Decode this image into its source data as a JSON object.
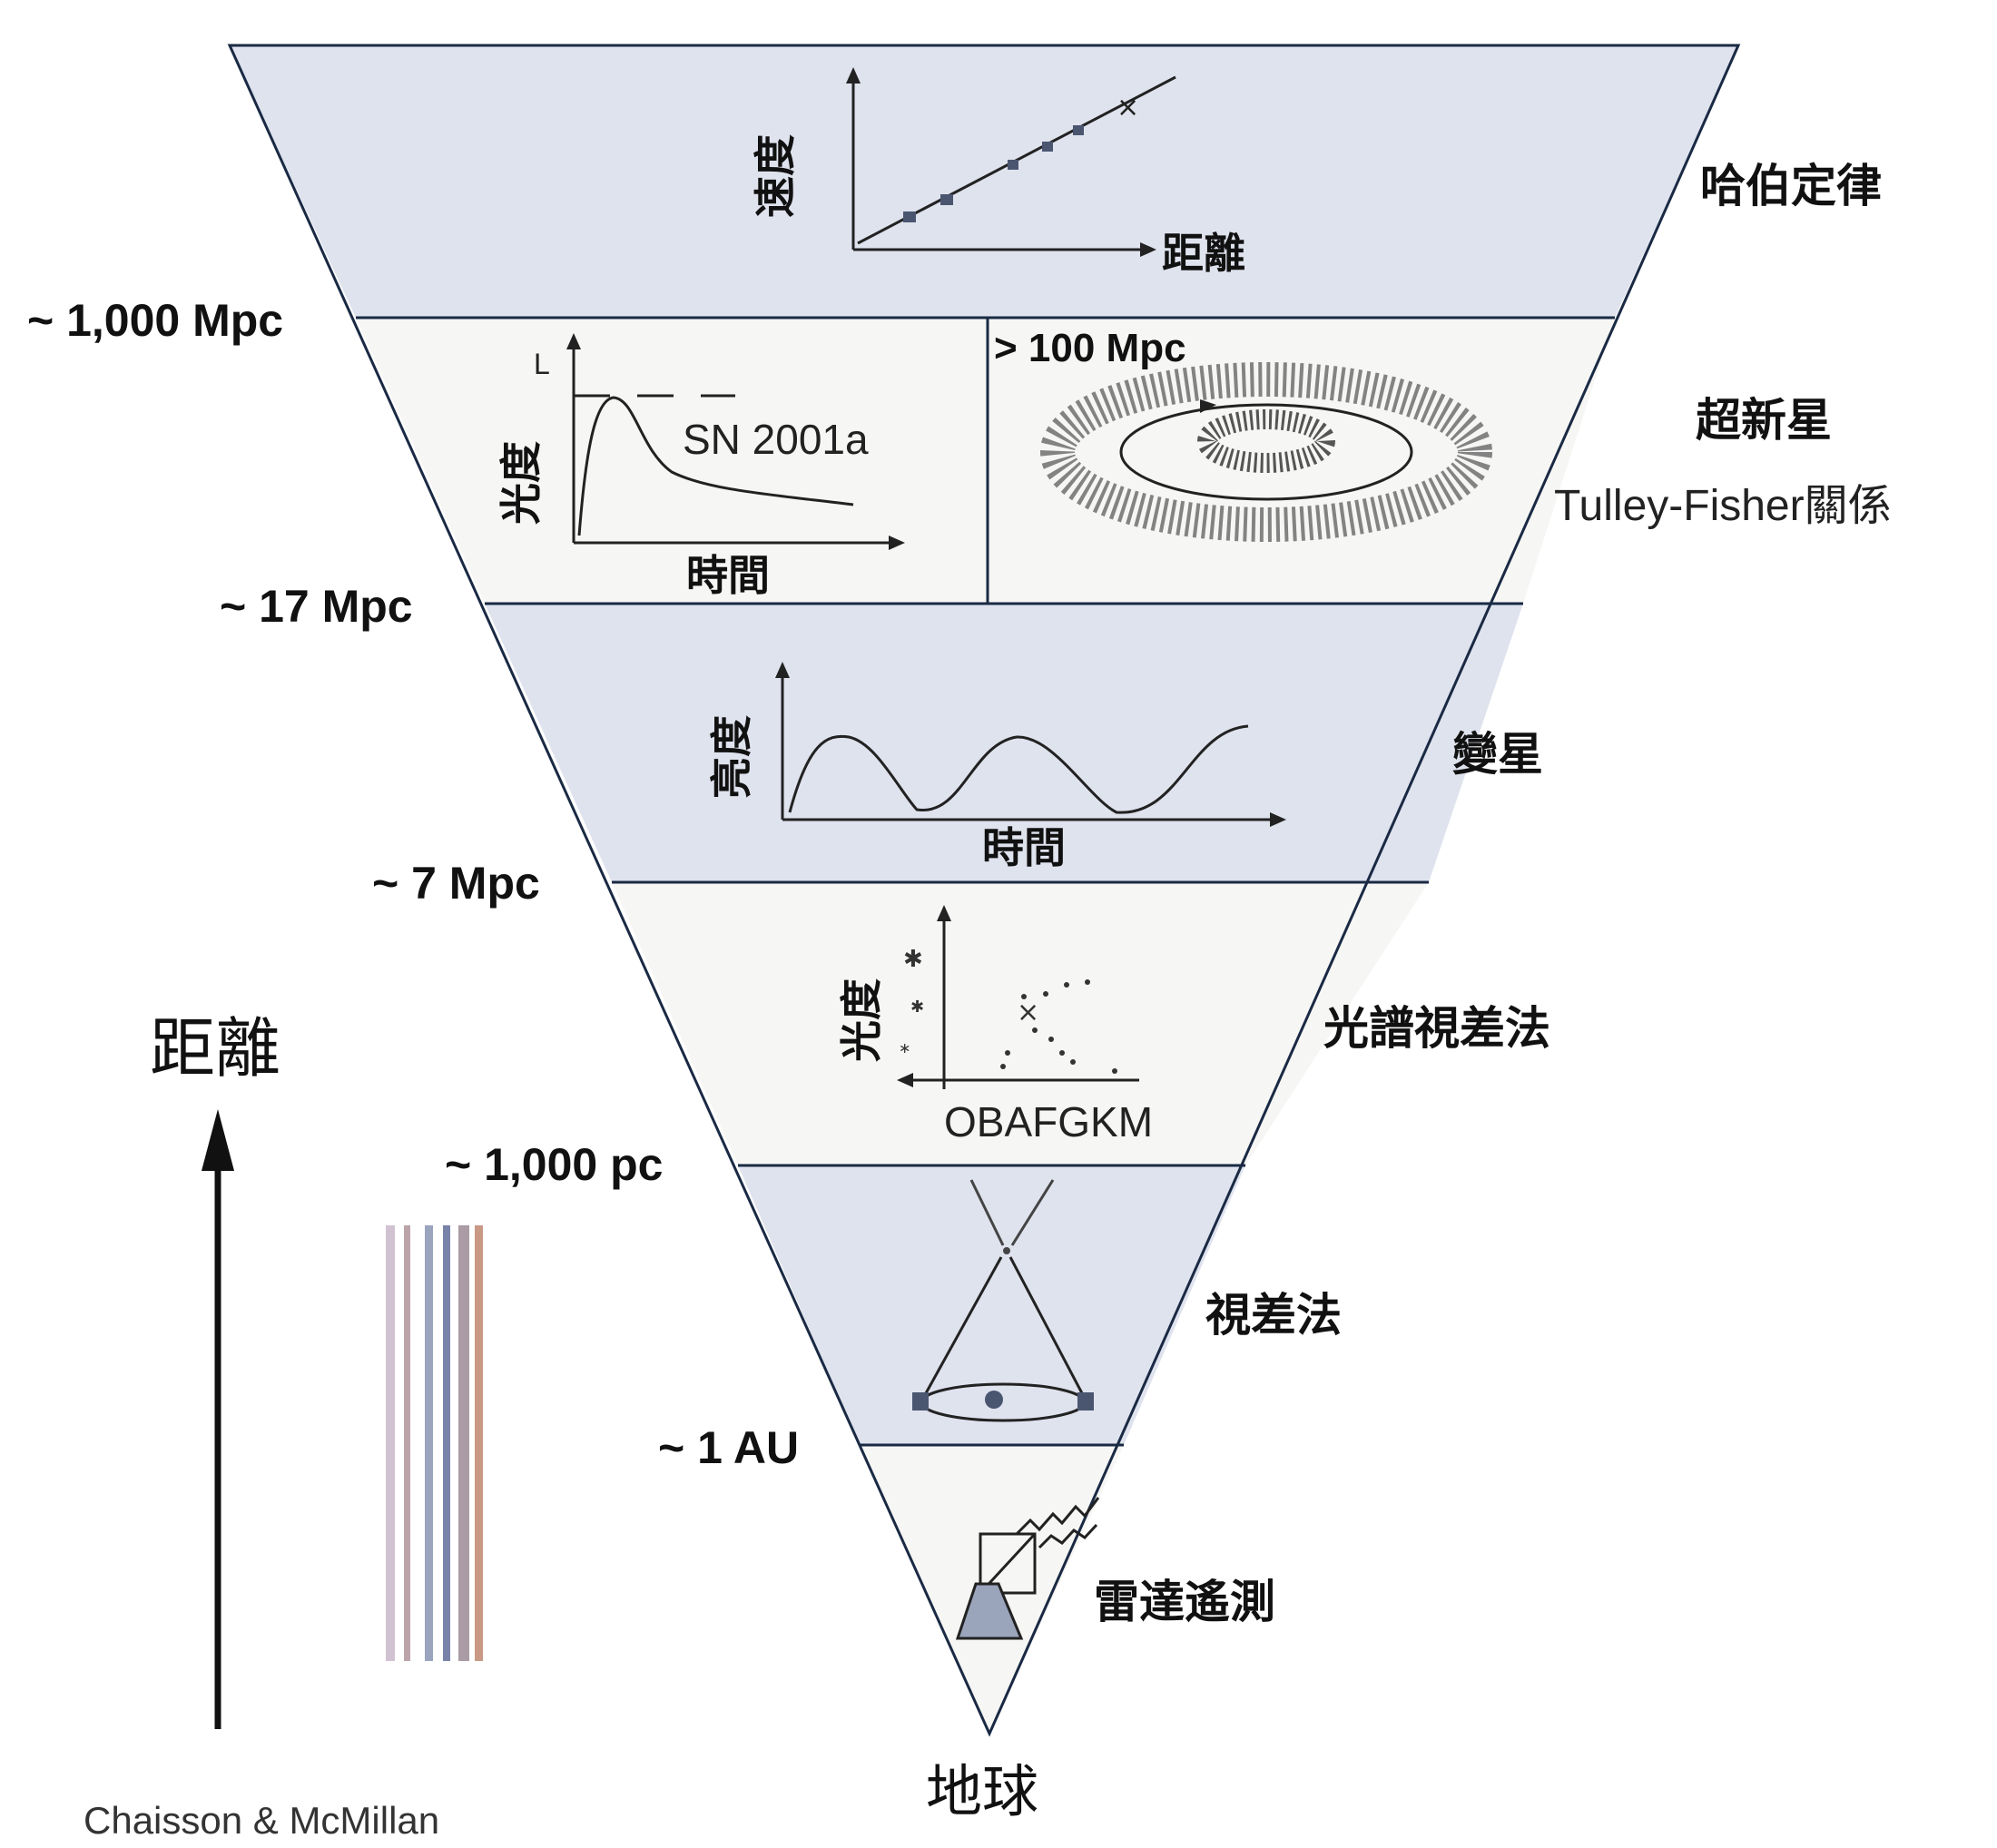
{
  "distances": {
    "d1000mpc": "~ 1,000 Mpc",
    "d17mpc": "~ 17 Mpc",
    "d7mpc": "~ 7 Mpc",
    "d1000pc": "~ 1,000 pc",
    "d1au": "~ 1 AU",
    "d100mpc": "> 100 Mpc"
  },
  "methods": {
    "hubble": "哈伯定律",
    "supernova": "超新星",
    "tully_fisher": "Tulley-Fisher關係",
    "variable_stars": "變星",
    "spectroscopic_parallax": "光譜視差法",
    "parallax": "視差法",
    "radar": "雷達遙測"
  },
  "panels": {
    "hubble_y": "速度",
    "hubble_x": "距離",
    "sn_y": "光度",
    "sn_top": "L",
    "sn_label": "SN 2001a",
    "sn_x": "時間",
    "var_y": "亮度",
    "var_x": "時間",
    "spec_y": "光度",
    "spec_x": "OBAFGKM"
  },
  "side": {
    "arrow_label": "距離",
    "bottom_label": "地球",
    "credit": "Chaisson & McMillan"
  },
  "colors": {
    "band": "#dfe3ee",
    "band_light": "#f6f6f4",
    "line": "#1a2a44",
    "marker": "#4a5670"
  }
}
